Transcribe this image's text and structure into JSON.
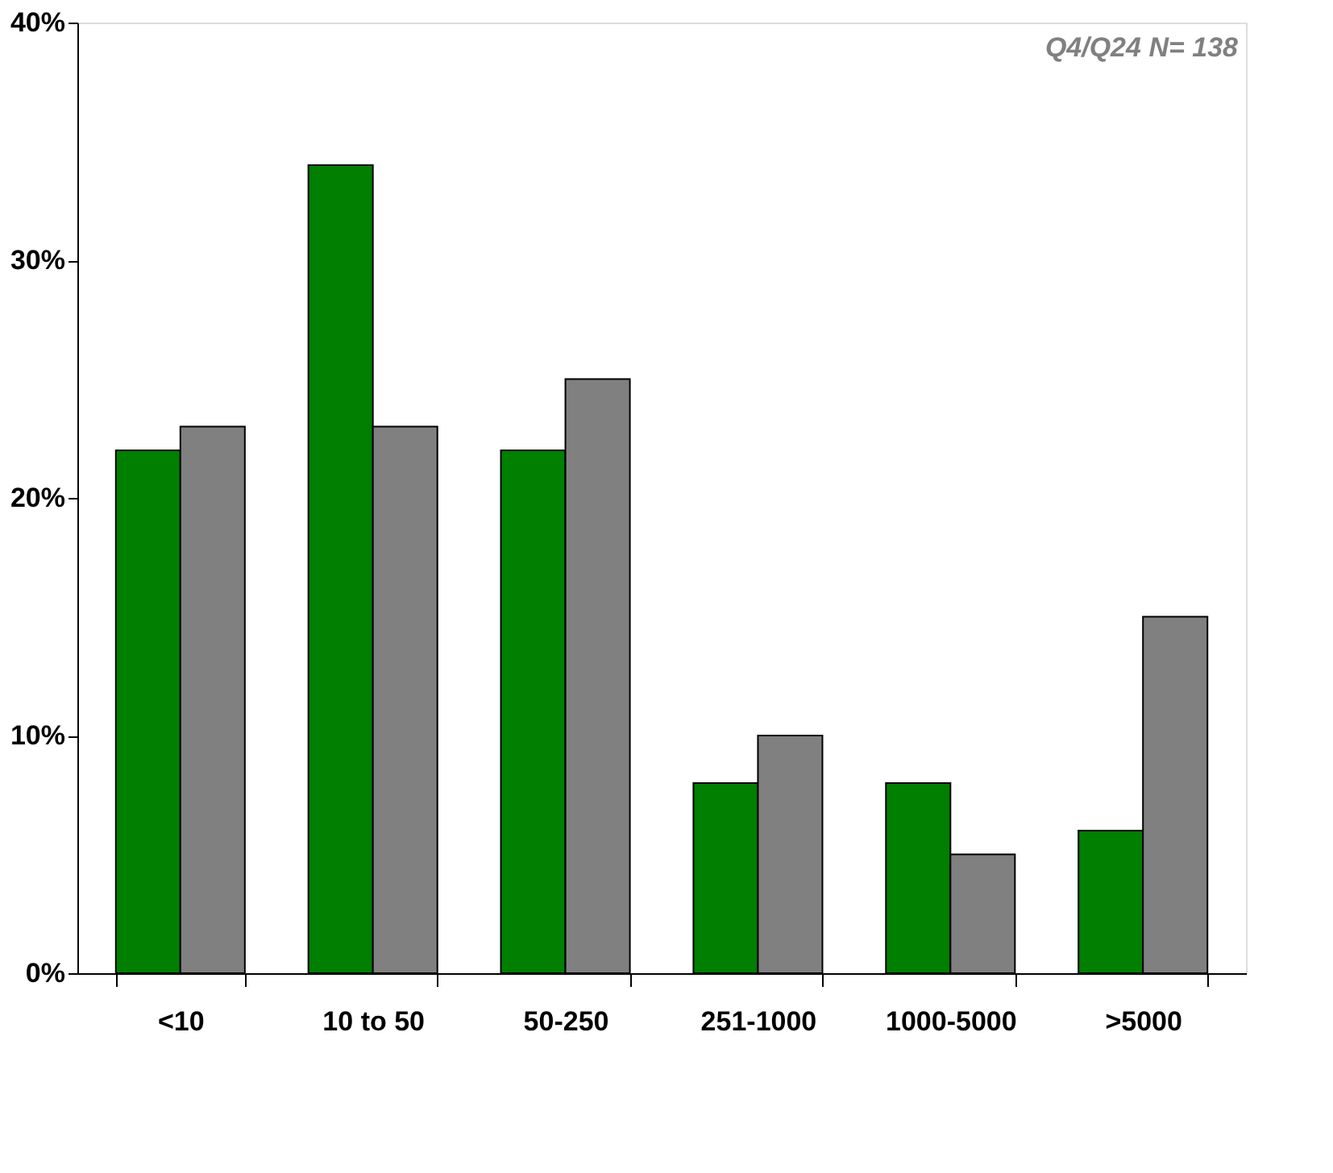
{
  "chart_data": {
    "type": "bar",
    "categories": [
      "<10",
      "10 to 50",
      "50-250",
      "251-1000",
      "1000-5000",
      ">5000"
    ],
    "series": [
      {
        "color": "#007f00",
        "values": [
          22,
          34,
          22,
          8,
          8,
          6
        ]
      },
      {
        "color": "#808080",
        "values": [
          23,
          23,
          25,
          10,
          5,
          15
        ]
      }
    ],
    "ylim": [
      0,
      40
    ],
    "yticks": [
      {
        "value": 0,
        "label": "0%"
      },
      {
        "value": 10,
        "label": "10%"
      },
      {
        "value": 20,
        "label": "20%"
      },
      {
        "value": 30,
        "label": "30%"
      },
      {
        "value": 40,
        "label": "40%"
      }
    ],
    "grid": false,
    "legend": false,
    "annotations": [
      "Q4/Q24 N= 138"
    ]
  }
}
